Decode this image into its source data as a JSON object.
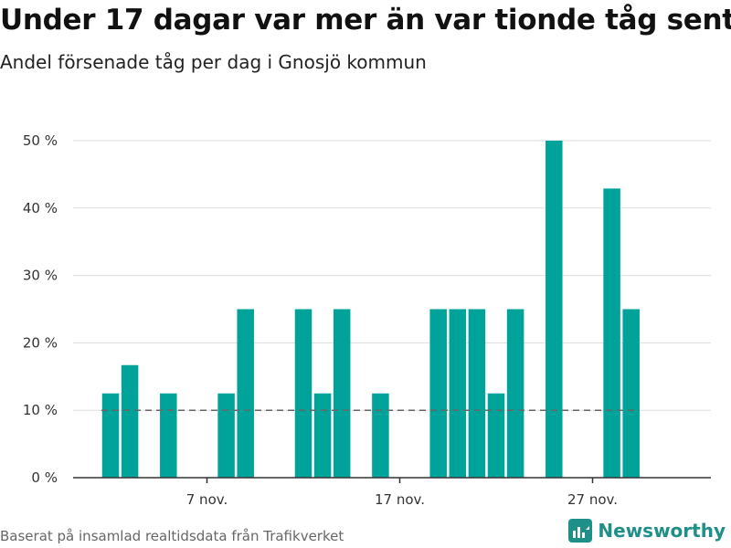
{
  "header": {
    "title": "Under 17 dagar var mer än var tionde tåg sent",
    "subtitle": "Andel försenade tåg per dag i Gnosjö kommun"
  },
  "footer": {
    "source": "Baserat på insamlad realtidsdata från Trafikverket",
    "brand": "Newsworthy"
  },
  "colors": {
    "bar": "#00a39a",
    "reference_line": "#666666",
    "grid": "#dddddd",
    "brand": "#1f8f89"
  },
  "chart_data": {
    "type": "bar",
    "title": "Under 17 dagar var mer än var tionde tåg sent",
    "subtitle": "Andel försenade tåg per dag i Gnosjö kommun",
    "xlabel": "",
    "ylabel": "",
    "x_unit": "day of November",
    "days": [
      1,
      2,
      3,
      4,
      5,
      6,
      7,
      8,
      9,
      10,
      11,
      12,
      13,
      14,
      15,
      16,
      17,
      18,
      19,
      20,
      21,
      22,
      23,
      24,
      25,
      26,
      27,
      28,
      29,
      30
    ],
    "values": [
      null,
      12.5,
      16.7,
      null,
      12.5,
      null,
      null,
      12.5,
      25,
      null,
      null,
      25,
      12.5,
      25,
      null,
      12.5,
      null,
      null,
      25,
      25,
      25,
      12.5,
      25,
      null,
      50,
      null,
      null,
      42.9,
      25,
      null
    ],
    "x_ticks": [
      {
        "day": 7,
        "label": "7 nov."
      },
      {
        "day": 17,
        "label": "17 nov."
      },
      {
        "day": 27,
        "label": "27 nov."
      }
    ],
    "y_ticks": [
      {
        "value": 0,
        "label": "0 %"
      },
      {
        "value": 10,
        "label": "10 %"
      },
      {
        "value": 20,
        "label": "20 %"
      },
      {
        "value": 30,
        "label": "30 %"
      },
      {
        "value": 40,
        "label": "40 %"
      },
      {
        "value": 50,
        "label": "50 %"
      }
    ],
    "ylim": [
      0,
      50
    ],
    "xlim": [
      0.5,
      30.5
    ],
    "reference_line": {
      "value": 10,
      "style": "dashed",
      "from_day": 2,
      "to_day": 30
    },
    "grid": true,
    "legend": "none"
  }
}
